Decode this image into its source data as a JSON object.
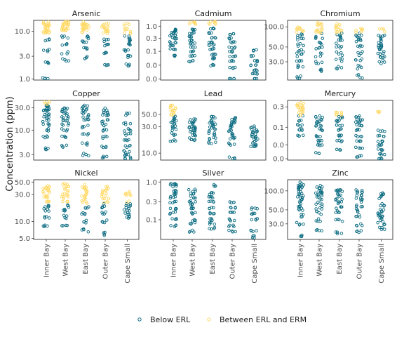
{
  "chart_data": {
    "type": "scatter",
    "ylabel": "Concentration (ppm)",
    "categories": [
      "Inner Bay",
      "West Bay",
      "East Bay",
      "Outer Bay",
      "Cape Small"
    ],
    "legend": [
      {
        "name": "Below ERL",
        "color": "#0a6b80"
      },
      {
        "name": "Between ERL and ERM",
        "color": "#ffd966"
      }
    ],
    "legend_position": "bottom",
    "panels": [
      {
        "title": "Arsenic",
        "scale": "log",
        "ylim": [
          0.95,
          17
        ],
        "ticks": [
          1.0,
          3.0,
          10.0
        ],
        "tick_labels": [
          "1.0",
          "3.0",
          "10.0"
        ],
        "threshold": 8.2,
        "points": [
          [
            1.0,
            2.2,
            4.0,
            6.5,
            9.5,
            10,
            11,
            12,
            13,
            14,
            15
          ],
          [
            2.5,
            3.5,
            5.5,
            7.5,
            10,
            11,
            12,
            13,
            14,
            15,
            16
          ],
          [
            2.8,
            4.5,
            6.0,
            7.5,
            10,
            11,
            12,
            13,
            14,
            15
          ],
          [
            1.9,
            3.5,
            5.0,
            6.5,
            9.5,
            10.5,
            12,
            13,
            14
          ],
          [
            2.0,
            3.0,
            4.0,
            5.5,
            6.5,
            7.5,
            9.5,
            11.5,
            14
          ]
        ]
      },
      {
        "title": "Cadmium",
        "scale": "log",
        "ylim": [
          0.0045,
          1.8
        ],
        "ticks": [
          0.005,
          0.02,
          0.08,
          0.3,
          1.0
        ],
        "tick_labels": [
          "0.0",
          "0.0",
          "0.1",
          "0.3",
          "1.0"
        ],
        "threshold": 1.2,
        "points": [
          [
            0.05,
            0.1,
            0.15,
            0.2,
            0.3,
            0.4,
            0.5,
            0.6,
            0.7
          ],
          [
            0.03,
            0.05,
            0.08,
            0.12,
            0.18,
            0.25,
            0.35,
            0.5,
            0.7,
            1.3,
            1.5
          ],
          [
            0.02,
            0.04,
            0.06,
            0.1,
            0.15,
            0.2,
            0.3,
            0.5,
            0.8,
            1.3,
            1.6
          ],
          [
            0.003,
            0.015,
            0.03,
            0.05,
            0.08,
            0.12,
            0.2,
            0.3,
            0.45
          ],
          [
            0.004,
            0.008,
            0.012,
            0.02,
            0.03,
            0.05,
            0.09
          ]
        ]
      },
      {
        "title": "Chromium",
        "scale": "log",
        "ylim": [
          16,
          125
        ],
        "ticks": [
          30.0,
          50.0,
          100.0
        ],
        "tick_labels": [
          "30.0",
          "50.0",
          "100.0"
        ],
        "threshold": 81,
        "points": [
          [
            18,
            25,
            32,
            38,
            45,
            55,
            65,
            75,
            85,
            92,
            98
          ],
          [
            22,
            30,
            38,
            48,
            58,
            70,
            80,
            88,
            96,
            105,
            115
          ],
          [
            25,
            32,
            40,
            50,
            60,
            70,
            78,
            86,
            95,
            105
          ],
          [
            18,
            25,
            32,
            40,
            50,
            60,
            70,
            78,
            84,
            95
          ],
          [
            30,
            35,
            40,
            45,
            50,
            55,
            65,
            75,
            88
          ]
        ]
      },
      {
        "title": "Copper",
        "scale": "log",
        "ylim": [
          2.3,
          43
        ],
        "ticks": [
          3.0,
          10.0,
          30.0
        ],
        "tick_labels": [
          "3.0",
          "10.0",
          "30.0"
        ],
        "threshold": 34,
        "points": [
          [
            4.0,
            7.0,
            10,
            13,
            16,
            19,
            22,
            25,
            28,
            31,
            35,
            38
          ],
          [
            4.5,
            7.5,
            10,
            13,
            16,
            19,
            22,
            26,
            30
          ],
          [
            3.0,
            5.0,
            8.0,
            12,
            16,
            20,
            24,
            28,
            33
          ],
          [
            2.7,
            4.5,
            7.0,
            10,
            13,
            16,
            20,
            24,
            28
          ],
          [
            2.5,
            3.0,
            3.5,
            4.5,
            6.0,
            8.0,
            10,
            14,
            22
          ]
        ]
      },
      {
        "title": "Lead",
        "scale": "log",
        "ylim": [
          7.5,
          90
        ],
        "ticks": [
          10.0,
          30.0,
          50.0
        ],
        "tick_labels": [
          "10.0",
          "30.0",
          "50.0"
        ],
        "threshold": 46.7,
        "points": [
          [
            17,
            22,
            27,
            32,
            37,
            42,
            48,
            55,
            62,
            70
          ],
          [
            17,
            20,
            23,
            26,
            29,
            32,
            36,
            40
          ],
          [
            15,
            18,
            22,
            26,
            30,
            34,
            38,
            44
          ],
          [
            8.0,
            15,
            18,
            22,
            26,
            30,
            34,
            38,
            42
          ],
          [
            13,
            15,
            17,
            19,
            21,
            23,
            26,
            30
          ]
        ]
      },
      {
        "title": "Mercury",
        "scale": "log",
        "ylim": [
          0.0045,
          0.5
        ],
        "ticks": [
          0.005,
          0.015,
          0.06,
          0.3
        ],
        "tick_labels": [
          "0.0",
          "0.0",
          "0.1",
          "0.3"
        ],
        "threshold": 0.15,
        "points": [
          [
            0.03,
            0.05,
            0.07,
            0.1,
            0.15,
            0.2,
            0.25,
            0.3,
            0.35,
            0.4
          ],
          [
            0.008,
            0.015,
            0.02,
            0.03,
            0.05,
            0.07,
            0.09,
            0.11,
            0.14
          ],
          [
            0.01,
            0.02,
            0.03,
            0.05,
            0.07,
            0.1,
            0.13,
            0.16,
            0.2
          ],
          [
            0.006,
            0.012,
            0.02,
            0.03,
            0.05,
            0.07,
            0.09,
            0.11,
            0.14
          ],
          [
            0.004,
            0.007,
            0.01,
            0.015,
            0.02,
            0.03,
            0.045,
            0.2
          ]
        ]
      },
      {
        "title": "Nickel",
        "scale": "log",
        "ylim": [
          4.8,
          55
        ],
        "ticks": [
          5.0,
          10.0,
          30.0,
          50.0
        ],
        "tick_labels": [
          "5.0",
          "10.0",
          "30.0",
          "50.0"
        ],
        "threshold": 20.9,
        "points": [
          [
            8.0,
            12,
            16,
            19,
            22,
            26,
            30,
            34,
            38,
            42
          ],
          [
            8.0,
            12,
            16,
            19,
            22,
            26,
            30,
            35,
            40,
            45
          ],
          [
            7.0,
            10,
            14,
            18,
            22,
            26,
            30,
            34,
            38,
            42
          ],
          [
            6.0,
            10,
            14,
            18,
            22,
            26,
            30,
            35,
            40
          ],
          [
            12,
            14,
            16,
            18,
            22,
            30,
            32
          ]
        ]
      },
      {
        "title": "Silver",
        "scale": "log",
        "ylim": [
          0.03,
          1.15
        ],
        "ticks": [
          0.1,
          0.3,
          1.0
        ],
        "tick_labels": [
          "0.1",
          "0.3",
          "1.0"
        ],
        "threshold": 1.0,
        "points": [
          [
            0.07,
            0.1,
            0.15,
            0.2,
            0.3,
            0.4,
            0.5,
            0.6,
            0.8,
            0.9
          ],
          [
            0.05,
            0.08,
            0.1,
            0.15,
            0.2,
            0.25,
            0.3,
            0.4,
            0.5,
            0.6
          ],
          [
            0.06,
            0.08,
            0.1,
            0.15,
            0.2,
            0.3,
            0.4,
            0.5,
            0.8
          ],
          [
            0.05,
            0.07,
            0.1,
            0.15,
            0.2,
            0.3
          ],
          [
            0.035,
            0.05,
            0.1,
            0.15,
            0.2
          ]
        ]
      },
      {
        "title": "Zinc",
        "scale": "log",
        "ylim": [
          17,
          150
        ],
        "ticks": [
          30.0,
          50.0,
          100.0
        ],
        "tick_labels": [
          "30.0",
          "50.0",
          "100.0"
        ],
        "threshold": 150,
        "points": [
          [
            20,
            30,
            40,
            50,
            60,
            70,
            80,
            90,
            100,
            110,
            120,
            130
          ],
          [
            25,
            35,
            45,
            55,
            65,
            75,
            85,
            95,
            105,
            115
          ],
          [
            22,
            35,
            45,
            55,
            65,
            75,
            85,
            95,
            105
          ],
          [
            22,
            30,
            40,
            50,
            60,
            70,
            80,
            90,
            100
          ],
          [
            25,
            30,
            35,
            40,
            45,
            50,
            60,
            80,
            90
          ]
        ]
      }
    ]
  }
}
